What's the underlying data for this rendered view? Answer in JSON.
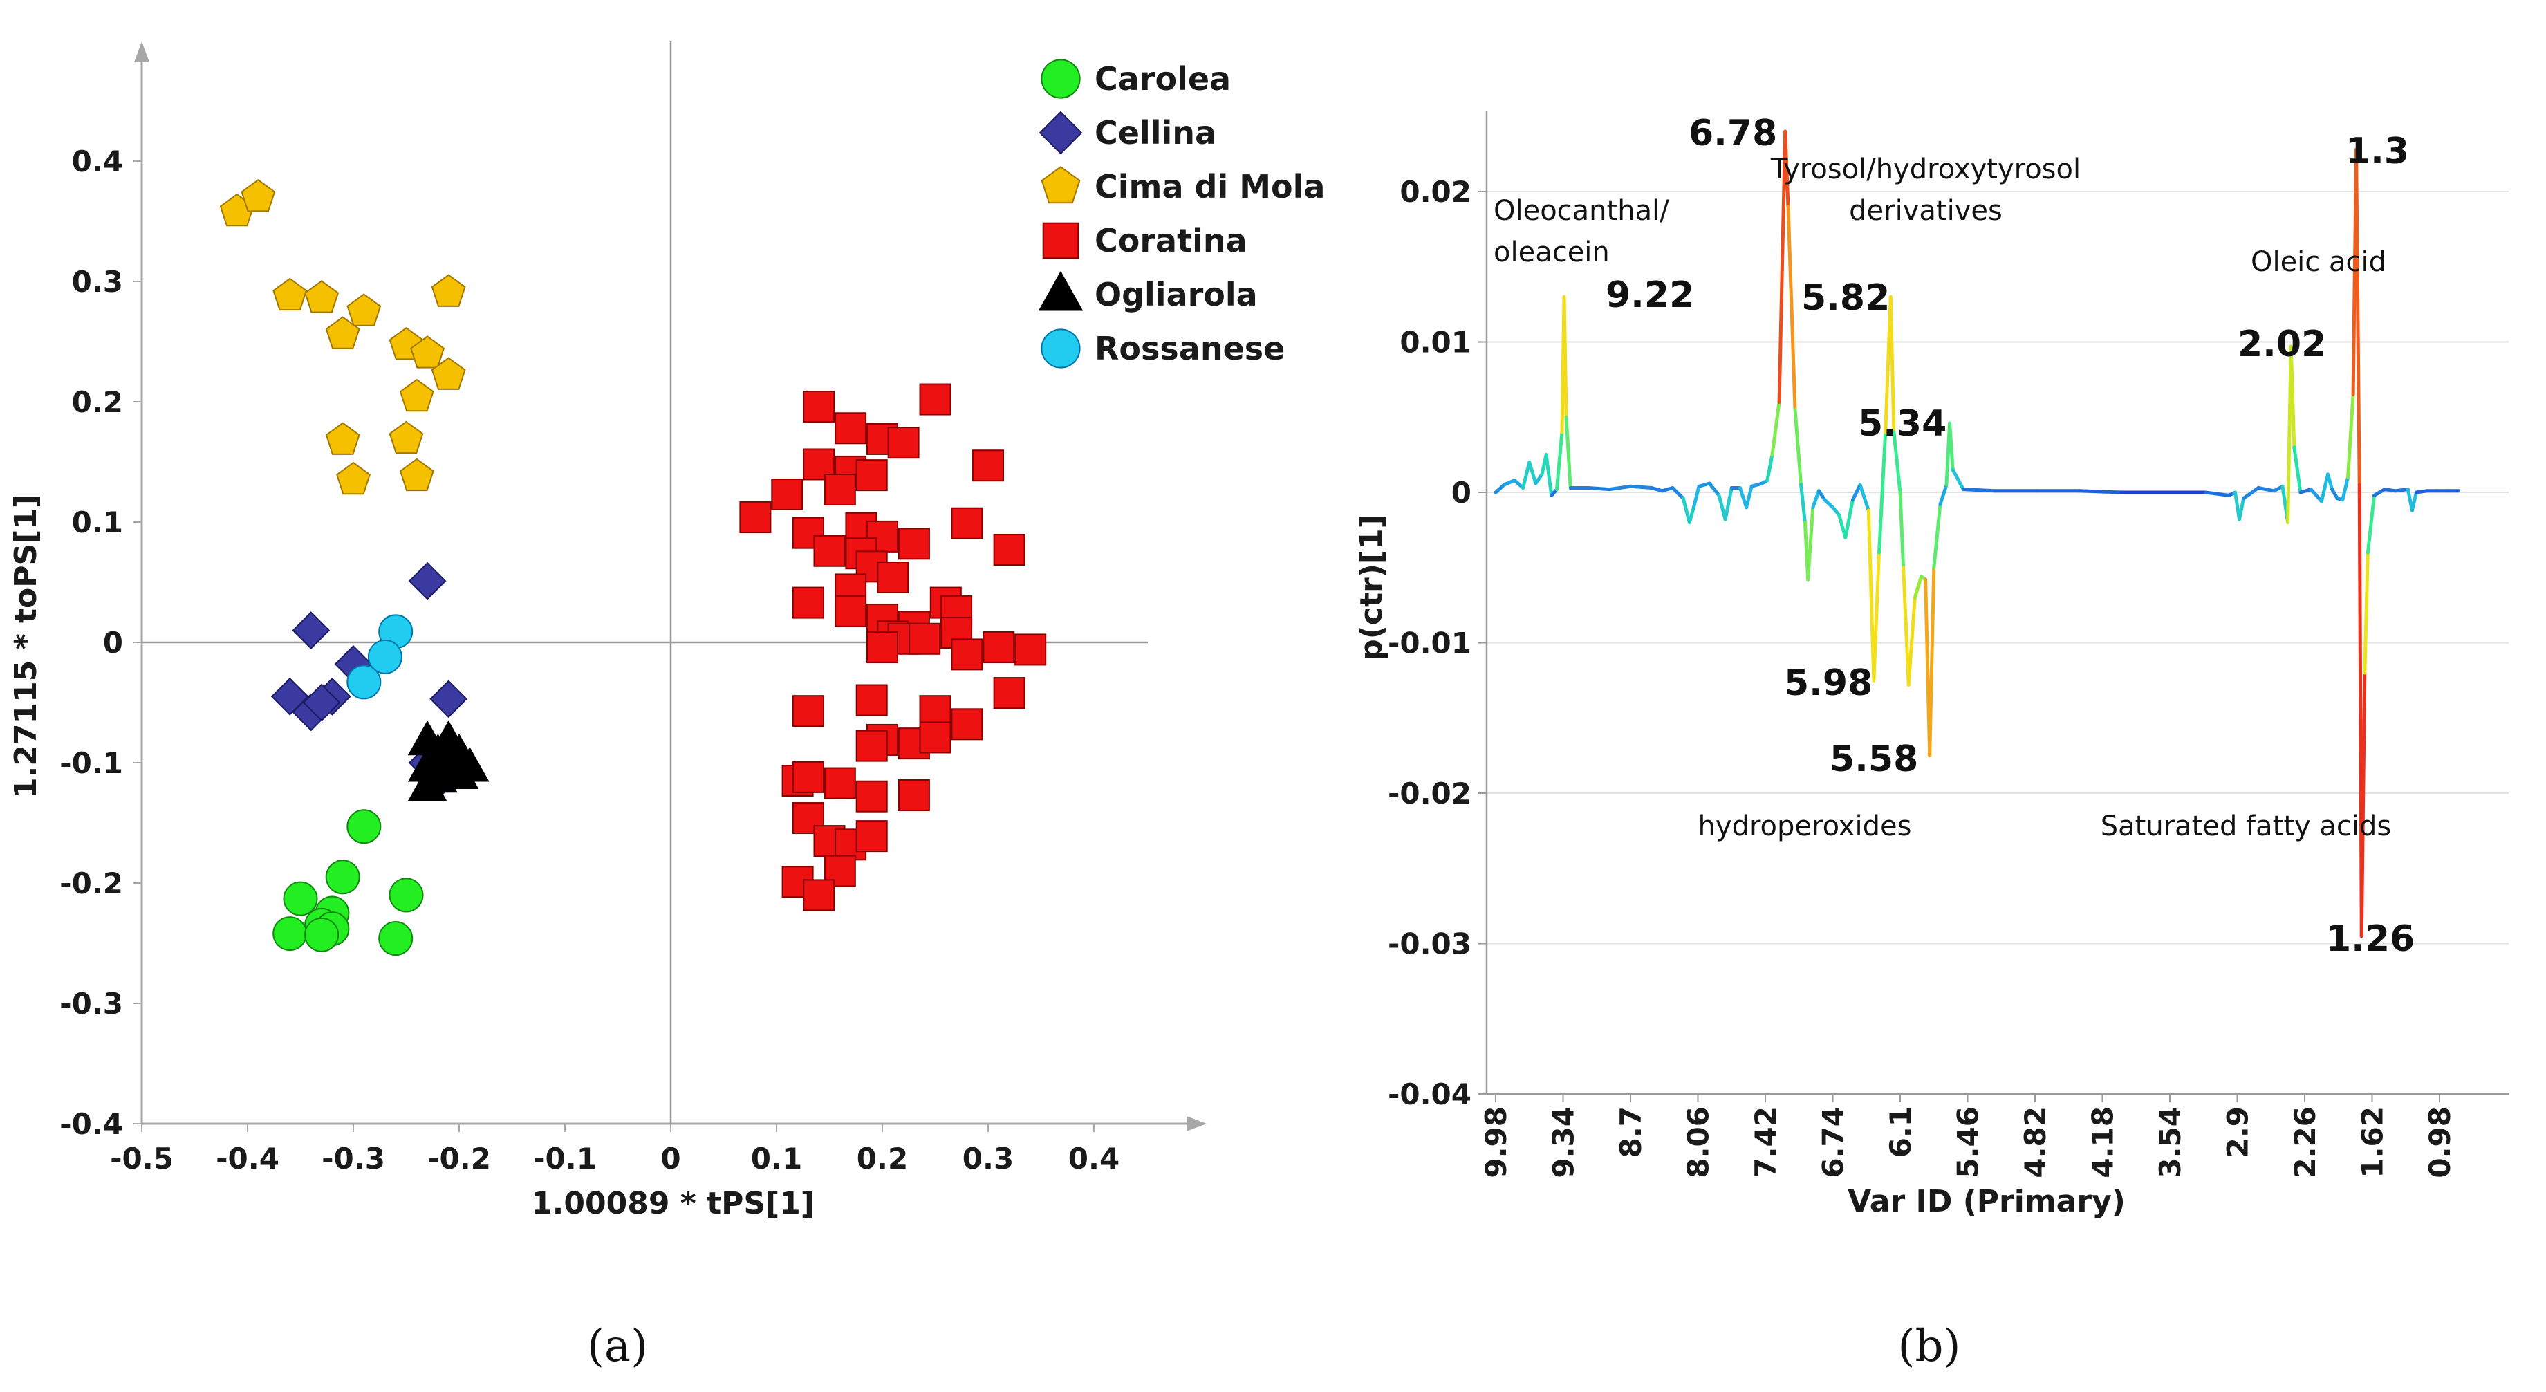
{
  "chart_data": [
    {
      "id": "a",
      "type": "scatter",
      "panel_label": "(a)",
      "xlabel": "1.00089 * tPS[1]",
      "ylabel": "1.27115 * toPS[1]",
      "xlim": [
        -0.5,
        0.5
      ],
      "ylim": [
        -0.4,
        0.5
      ],
      "xticks": [
        -0.5,
        -0.4,
        -0.3,
        -0.2,
        -0.1,
        0,
        0.1,
        0.2,
        0.3,
        0.4
      ],
      "xtick_labels": [
        "-0.5",
        "-0.4",
        "-0.3",
        "-0.2",
        "-0.1",
        "0",
        "0.1",
        "0.2",
        "0.3",
        "0.4"
      ],
      "yticks": [
        -0.4,
        -0.3,
        -0.2,
        -0.1,
        0,
        0.1,
        0.2,
        0.3,
        0.4
      ],
      "ytick_labels": [
        "-0.4",
        "-0.3",
        "-0.2",
        "-0.1",
        "0",
        "0.1",
        "0.2",
        "0.3",
        "0.4"
      ],
      "legend_position": "top-right",
      "series": [
        {
          "name": "Carolea",
          "marker": "circle",
          "color": "#22ee22",
          "stroke": "#118811",
          "points": [
            [
              -0.29,
              -0.153
            ],
            [
              -0.31,
              -0.195
            ],
            [
              -0.25,
              -0.21
            ],
            [
              -0.35,
              -0.213
            ],
            [
              -0.32,
              -0.225
            ],
            [
              -0.33,
              -0.235
            ],
            [
              -0.32,
              -0.238
            ],
            [
              -0.36,
              -0.242
            ],
            [
              -0.33,
              -0.243
            ],
            [
              -0.26,
              -0.246
            ]
          ]
        },
        {
          "name": "Cellina",
          "marker": "diamond",
          "color": "#3a3aa0",
          "stroke": "#1c1c66",
          "points": [
            [
              -0.23,
              0.051
            ],
            [
              -0.34,
              0.01
            ],
            [
              -0.3,
              -0.018
            ],
            [
              -0.36,
              -0.045
            ],
            [
              -0.32,
              -0.045
            ],
            [
              -0.21,
              -0.047
            ],
            [
              -0.34,
              -0.058
            ],
            [
              -0.33,
              -0.05
            ],
            [
              -0.23,
              -0.1
            ],
            [
              -0.22,
              -0.115
            ]
          ]
        },
        {
          "name": "Cima di Mola",
          "marker": "pentagon",
          "color": "#f5c000",
          "stroke": "#a07800",
          "points": [
            [
              -0.41,
              0.358
            ],
            [
              -0.39,
              0.37
            ],
            [
              -0.36,
              0.288
            ],
            [
              -0.33,
              0.286
            ],
            [
              -0.29,
              0.275
            ],
            [
              -0.21,
              0.291
            ],
            [
              -0.31,
              0.256
            ],
            [
              -0.25,
              0.247
            ],
            [
              -0.23,
              0.24
            ],
            [
              -0.21,
              0.222
            ],
            [
              -0.24,
              0.204
            ],
            [
              -0.31,
              0.168
            ],
            [
              -0.25,
              0.169
            ],
            [
              -0.3,
              0.135
            ],
            [
              -0.24,
              0.138
            ]
          ]
        },
        {
          "name": "Coratina",
          "marker": "square",
          "color": "#ee1111",
          "stroke": "#880000",
          "points": [
            [
              0.14,
              0.196
            ],
            [
              0.25,
              0.202
            ],
            [
              0.17,
              0.178
            ],
            [
              0.2,
              0.169
            ],
            [
              0.22,
              0.166
            ],
            [
              0.14,
              0.148
            ],
            [
              0.3,
              0.147
            ],
            [
              0.11,
              0.123
            ],
            [
              0.17,
              0.142
            ],
            [
              0.19,
              0.139
            ],
            [
              0.16,
              0.127
            ],
            [
              0.08,
              0.104
            ],
            [
              0.13,
              0.091
            ],
            [
              0.18,
              0.095
            ],
            [
              0.2,
              0.088
            ],
            [
              0.23,
              0.082
            ],
            [
              0.28,
              0.099
            ],
            [
              0.32,
              0.077
            ],
            [
              0.15,
              0.076
            ],
            [
              0.18,
              0.074
            ],
            [
              0.19,
              0.063
            ],
            [
              0.21,
              0.054
            ],
            [
              0.17,
              0.044
            ],
            [
              0.26,
              0.033
            ],
            [
              0.13,
              0.033
            ],
            [
              0.17,
              0.026
            ],
            [
              0.2,
              0.019
            ],
            [
              0.23,
              0.013
            ],
            [
              0.27,
              0.026
            ],
            [
              0.21,
              0.005
            ],
            [
              0.22,
              0.003
            ],
            [
              0.24,
              0.003
            ],
            [
              0.27,
              0.008
            ],
            [
              0.31,
              -0.004
            ],
            [
              0.34,
              -0.006
            ],
            [
              0.2,
              -0.004
            ],
            [
              0.28,
              -0.01
            ],
            [
              0.19,
              -0.048
            ],
            [
              0.25,
              -0.057
            ],
            [
              0.13,
              -0.057
            ],
            [
              0.28,
              -0.068
            ],
            [
              0.32,
              -0.042
            ],
            [
              0.2,
              -0.081
            ],
            [
              0.23,
              -0.084
            ],
            [
              0.25,
              -0.079
            ],
            [
              0.19,
              -0.086
            ],
            [
              0.12,
              -0.115
            ],
            [
              0.13,
              -0.112
            ],
            [
              0.16,
              -0.117
            ],
            [
              0.19,
              -0.128
            ],
            [
              0.23,
              -0.127
            ],
            [
              0.13,
              -0.146
            ],
            [
              0.15,
              -0.165
            ],
            [
              0.17,
              -0.168
            ],
            [
              0.19,
              -0.161
            ],
            [
              0.16,
              -0.19
            ],
            [
              0.12,
              -0.199
            ],
            [
              0.14,
              -0.21
            ]
          ]
        },
        {
          "name": "Ogliarola",
          "marker": "triangle",
          "color": "#000000",
          "stroke": "#000000",
          "points": [
            [
              -0.23,
              -0.082
            ],
            [
              -0.21,
              -0.082
            ],
            [
              -0.22,
              -0.093
            ],
            [
              -0.2,
              -0.093
            ],
            [
              -0.23,
              -0.104
            ],
            [
              -0.21,
              -0.104
            ],
            [
              -0.19,
              -0.104
            ],
            [
              -0.22,
              -0.113
            ],
            [
              -0.2,
              -0.11
            ],
            [
              -0.23,
              -0.12
            ]
          ]
        },
        {
          "name": "Rossanese",
          "marker": "circle",
          "color": "#22ccf0",
          "stroke": "#0077aa",
          "points": [
            [
              -0.26,
              0.009
            ],
            [
              -0.27,
              -0.012
            ],
            [
              -0.29,
              -0.033
            ]
          ]
        }
      ]
    },
    {
      "id": "b",
      "type": "line",
      "panel_label": "(b)",
      "xlabel": "Var ID (Primary)",
      "ylabel": "p(ctr)[1]",
      "xlim": [
        9.98,
        0.5
      ],
      "ylim": [
        -0.04,
        0.025
      ],
      "xtick_labels": [
        "9.98",
        "9.34",
        "8.7",
        "8.06",
        "7.42",
        "6.74",
        "6.1",
        "5.46",
        "4.82",
        "4.18",
        "3.54",
        "2.9",
        "2.26",
        "1.62",
        "0.98"
      ],
      "xticks": [
        9.98,
        9.34,
        8.7,
        8.06,
        7.42,
        6.74,
        6.1,
        5.46,
        4.82,
        4.18,
        3.54,
        2.9,
        2.26,
        1.62,
        0.98
      ],
      "yticks": [
        -0.04,
        -0.03,
        -0.02,
        -0.01,
        0,
        0.01,
        0.02
      ],
      "ytick_labels": [
        "-0.04",
        "-0.03",
        "-0.02",
        "-0.01",
        "0",
        "0.01",
        "0.02"
      ],
      "color_scale": [
        "#1f3fd9",
        "#1fb7e6",
        "#27e8a0",
        "#a7ec2c",
        "#f2e21a",
        "#f39a1e",
        "#e9321e"
      ],
      "points": [
        [
          9.98,
          0
        ],
        [
          9.9,
          0.0005
        ],
        [
          9.8,
          0.0008
        ],
        [
          9.72,
          0.0003
        ],
        [
          9.66,
          0.002
        ],
        [
          9.6,
          0.0006
        ],
        [
          9.54,
          0.0012
        ],
        [
          9.5,
          0.0025
        ],
        [
          9.45,
          -0.0002
        ],
        [
          9.4,
          0.0002
        ],
        [
          9.35,
          0.004
        ],
        [
          9.33,
          0.013
        ],
        [
          9.31,
          0.005
        ],
        [
          9.27,
          0.0003
        ],
        [
          9.1,
          0.0003
        ],
        [
          8.9,
          0.0002
        ],
        [
          8.7,
          0.0004
        ],
        [
          8.5,
          0.0003
        ],
        [
          8.4,
          0.0001
        ],
        [
          8.3,
          0.0003
        ],
        [
          8.2,
          -0.0004
        ],
        [
          8.14,
          -0.002
        ],
        [
          8.1,
          -0.001
        ],
        [
          8.05,
          0.0004
        ],
        [
          7.95,
          0.0006
        ],
        [
          7.86,
          -0.0002
        ],
        [
          7.8,
          -0.0018
        ],
        [
          7.74,
          0.0003
        ],
        [
          7.66,
          0.0003
        ],
        [
          7.6,
          -0.001
        ],
        [
          7.55,
          0.0004
        ],
        [
          7.45,
          0.0006
        ],
        [
          7.4,
          0.0008
        ],
        [
          7.35,
          0.0025
        ],
        [
          7.28,
          0.006
        ],
        [
          7.22,
          0.024
        ],
        [
          7.19,
          0.019
        ],
        [
          7.12,
          0.0055
        ],
        [
          7.06,
          0.0005
        ],
        [
          7.02,
          -0.002
        ],
        [
          6.99,
          -0.0058
        ],
        [
          6.94,
          -0.001
        ],
        [
          6.88,
          0.0001
        ],
        [
          6.82,
          -0.0005
        ],
        [
          6.74,
          -0.001
        ],
        [
          6.68,
          -0.0015
        ],
        [
          6.62,
          -0.003
        ],
        [
          6.55,
          -0.0005
        ],
        [
          6.48,
          0.0005
        ],
        [
          6.4,
          -0.0012
        ],
        [
          6.35,
          -0.0125
        ],
        [
          6.3,
          -0.004
        ],
        [
          6.24,
          0.004
        ],
        [
          6.19,
          0.013
        ],
        [
          6.16,
          0.004
        ],
        [
          6.1,
          0
        ],
        [
          6.07,
          -0.005
        ],
        [
          6.02,
          -0.0128
        ],
        [
          5.96,
          -0.007
        ],
        [
          5.9,
          -0.0056
        ],
        [
          5.86,
          -0.0058
        ],
        [
          5.82,
          -0.0175
        ],
        [
          5.78,
          -0.005
        ],
        [
          5.72,
          -0.0008
        ],
        [
          5.66,
          0.0005
        ],
        [
          5.63,
          0.0046
        ],
        [
          5.6,
          0.0015
        ],
        [
          5.5,
          0.0002
        ],
        [
          5.2,
          0.0001
        ],
        [
          4.8,
          0.0001
        ],
        [
          4.4,
          0.0001
        ],
        [
          4.0,
          0
        ],
        [
          3.6,
          0
        ],
        [
          3.2,
          0
        ],
        [
          2.98,
          -0.0002
        ],
        [
          2.92,
          0
        ],
        [
          2.88,
          -0.0018
        ],
        [
          2.84,
          -0.0004
        ],
        [
          2.7,
          0.0003
        ],
        [
          2.55,
          0.0001
        ],
        [
          2.47,
          0.0004
        ],
        [
          2.42,
          -0.002
        ],
        [
          2.39,
          0.0097
        ],
        [
          2.36,
          0.003
        ],
        [
          2.3,
          0
        ],
        [
          2.2,
          0.0002
        ],
        [
          2.1,
          -0.0006
        ],
        [
          2.04,
          0.0012
        ],
        [
          2.0,
          0.0002
        ],
        [
          1.95,
          -0.0004
        ],
        [
          1.9,
          -0.0005
        ],
        [
          1.85,
          0.001
        ],
        [
          1.8,
          0.0065
        ],
        [
          1.77,
          0.0228
        ],
        [
          1.74,
          0.0005
        ],
        [
          1.72,
          -0.0295
        ],
        [
          1.69,
          -0.012
        ],
        [
          1.66,
          -0.004
        ],
        [
          1.6,
          -0.0002
        ],
        [
          1.5,
          0.0002
        ],
        [
          1.4,
          0.0001
        ],
        [
          1.28,
          0.0002
        ],
        [
          1.24,
          -0.0012
        ],
        [
          1.2,
          0
        ],
        [
          1.1,
          0.0001
        ],
        [
          1.0,
          0.0001
        ],
        [
          0.9,
          0.0001
        ],
        [
          0.8,
          0.0001
        ]
      ],
      "peak_labels": [
        "6.78",
        "9.22",
        "5.82",
        "5.34",
        "5.98",
        "5.58",
        "1.3",
        "2.02",
        "1.26"
      ],
      "annotations": [
        "Oleocanthal/",
        "oleacein",
        "Tyrosol/hydroxytyrosol",
        "derivatives",
        "Oleic acid",
        "hydroperoxides",
        "Saturated fatty acids"
      ]
    }
  ]
}
